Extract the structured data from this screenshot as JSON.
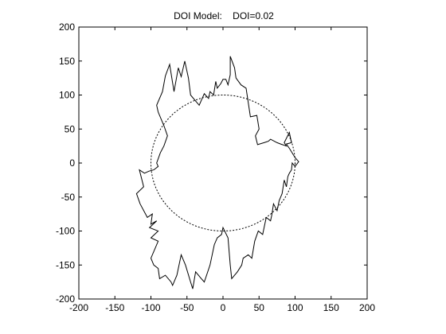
{
  "chart_data": {
    "type": "line",
    "title": "DOI Model:    DOI=0.02",
    "xlabel": "",
    "ylabel": "",
    "xlim": [
      -200,
      200
    ],
    "ylim": [
      -200,
      200
    ],
    "xticks": [
      -200,
      -150,
      -100,
      -50,
      0,
      50,
      100,
      150,
      200
    ],
    "yticks": [
      -200,
      -150,
      -100,
      -50,
      0,
      50,
      100,
      150,
      200
    ],
    "grid": false,
    "legend": "none",
    "series": [
      {
        "style": "dashed",
        "color": "#000000",
        "shape": "circle",
        "radius": 100,
        "center": [
          0,
          0
        ]
      },
      {
        "style": "solid",
        "color": "#000000",
        "x": [
          105,
          100,
          93,
          88,
          95,
          92,
          85,
          88,
          80,
          75,
          66,
          63,
          57,
          48,
          45,
          50,
          47,
          38,
          32,
          25,
          18,
          16,
          10,
          10,
          7,
          4,
          0,
          -3,
          -8,
          -10,
          -13,
          -18,
          -20,
          -26,
          -33,
          -37,
          -45,
          -48,
          -53,
          -58,
          -62,
          -68,
          -74,
          -80,
          -84,
          -92,
          -90,
          -82,
          -77,
          -82,
          -87,
          -92,
          -90,
          -96,
          -103,
          -109,
          -116,
          -110,
          -120,
          -115,
          -105,
          -98,
          -100,
          -92,
          -102,
          -90,
          -100,
          -90,
          -100,
          -96,
          -90,
          -88,
          -80,
          -72,
          -70,
          -64,
          -58,
          -52,
          -45,
          -42,
          -38,
          -30,
          -26,
          -18,
          -12,
          -8,
          -2,
          0,
          7,
          10,
          12,
          20,
          26,
          28,
          35,
          40,
          44,
          49,
          55,
          58,
          60,
          66,
          68,
          70,
          75,
          78,
          80,
          82,
          85,
          88,
          90,
          92,
          95,
          96,
          100,
          105
        ],
        "y": [
          2,
          8,
          20,
          28,
          30,
          45,
          30,
          25,
          28,
          30,
          35,
          32,
          30,
          27,
          40,
          50,
          70,
          68,
          110,
          115,
          125,
          140,
          157,
          130,
          115,
          123,
          123,
          117,
          110,
          120,
          100,
          105,
          95,
          102,
          85,
          90,
          100,
          125,
          150,
          127,
          140,
          105,
          145,
          128,
          105,
          85,
          75,
          55,
          40,
          25,
          15,
          0,
          -5,
          -10,
          -12,
          -15,
          -10,
          -35,
          -45,
          -60,
          -80,
          -75,
          -90,
          -85,
          -95,
          -100,
          -110,
          -115,
          -140,
          -150,
          -155,
          -170,
          -165,
          -175,
          -180,
          -165,
          -135,
          -150,
          -175,
          -185,
          -160,
          -170,
          -175,
          -150,
          -120,
          -110,
          -105,
          -95,
          -110,
          -150,
          -170,
          -160,
          -150,
          -140,
          -135,
          -140,
          -115,
          -100,
          -105,
          -90,
          -80,
          -85,
          -75,
          -60,
          -70,
          -55,
          -50,
          -45,
          -25,
          -35,
          -20,
          -15,
          -10,
          0,
          -5,
          2
        ]
      }
    ]
  }
}
